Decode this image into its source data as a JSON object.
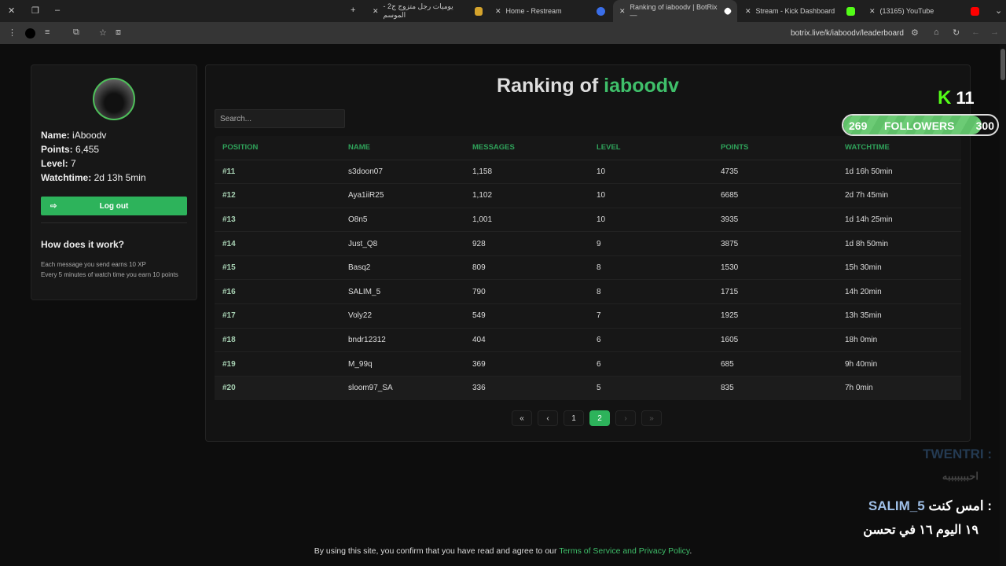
{
  "browser": {
    "tabs": [
      {
        "label": "يوميات رجل متزوج ج2 - الموسم",
        "favicon": "#d4a32c"
      },
      {
        "label": "Home - Restream",
        "favicon": "#3a6ee8"
      },
      {
        "label": "Ranking of iaboodv | BotRix —",
        "favicon": "#ffffff",
        "active": true
      },
      {
        "label": "Stream - Kick Dashboard",
        "favicon": "#53fc18"
      },
      {
        "label": "(13165) YouTube",
        "favicon": "#ff0000"
      }
    ],
    "url": "botrix.live/k/iaboodv/leaderboard"
  },
  "profile": {
    "name_label": "Name:",
    "name": "iAboodv",
    "points_label": "Points:",
    "points": "6,455",
    "level_label": "Level:",
    "level": "7",
    "watchtime_label": "Watchtime:",
    "watchtime": "2d 13h 5min",
    "logout": "Log out",
    "how_title": "How does it work?",
    "how_lines": [
      "Each message you send earns 10 XP",
      "Every 5 minutes of watch time you earn 10 points"
    ]
  },
  "main": {
    "title_prefix": "Ranking of ",
    "title_user": "iaboodv",
    "search_placeholder": "Search...",
    "columns": [
      "POSITION",
      "NAME",
      "MESSAGES",
      "LEVEL",
      "POINTS",
      "WATCHTIME"
    ],
    "rows": [
      [
        "#11",
        "s3doon07",
        "1,158",
        "10",
        "4735",
        "1d 16h 50min"
      ],
      [
        "#12",
        "Aya1iiR25",
        "1,102",
        "10",
        "6685",
        "2d 7h 45min"
      ],
      [
        "#13",
        "O8n5",
        "1,001",
        "10",
        "3935",
        "1d 14h 25min"
      ],
      [
        "#14",
        "Just_Q8",
        "928",
        "9",
        "3875",
        "1d 8h 50min"
      ],
      [
        "#15",
        "Basq2",
        "809",
        "8",
        "1530",
        "15h 30min"
      ],
      [
        "#16",
        "SALIM_5",
        "790",
        "8",
        "1715",
        "14h 20min"
      ],
      [
        "#17",
        "Voly22",
        "549",
        "7",
        "1925",
        "13h 35min"
      ],
      [
        "#18",
        "bndr12312",
        "404",
        "6",
        "1605",
        "18h 0min"
      ],
      [
        "#19",
        "M_99q",
        "369",
        "6",
        "685",
        "9h 40min"
      ],
      [
        "#20",
        "sloom97_SA",
        "336",
        "5",
        "835",
        "7h 0min"
      ]
    ],
    "pagination": {
      "pages": [
        "1",
        "2"
      ],
      "current": "2",
      "first": "«",
      "prev": "‹",
      "next": "›",
      "last": "»"
    }
  },
  "overlay": {
    "kick_count": "11",
    "followers_current": "269",
    "followers_label": "FOLLOWERS",
    "followers_goal": "300",
    "followers_progress": 0.897,
    "chat": [
      {
        "user": "TWENTRI :",
        "msg": "احبببببببه"
      },
      {
        "user": "SALIM_5",
        "prefix": "امس كنت :",
        "msg": "١٩ اليوم ١٦ في تحسن"
      }
    ]
  },
  "footer": {
    "text": "By using this site, you confirm that you have read and agree to our ",
    "link": "Terms of Service and Privacy Policy",
    "end": "."
  }
}
